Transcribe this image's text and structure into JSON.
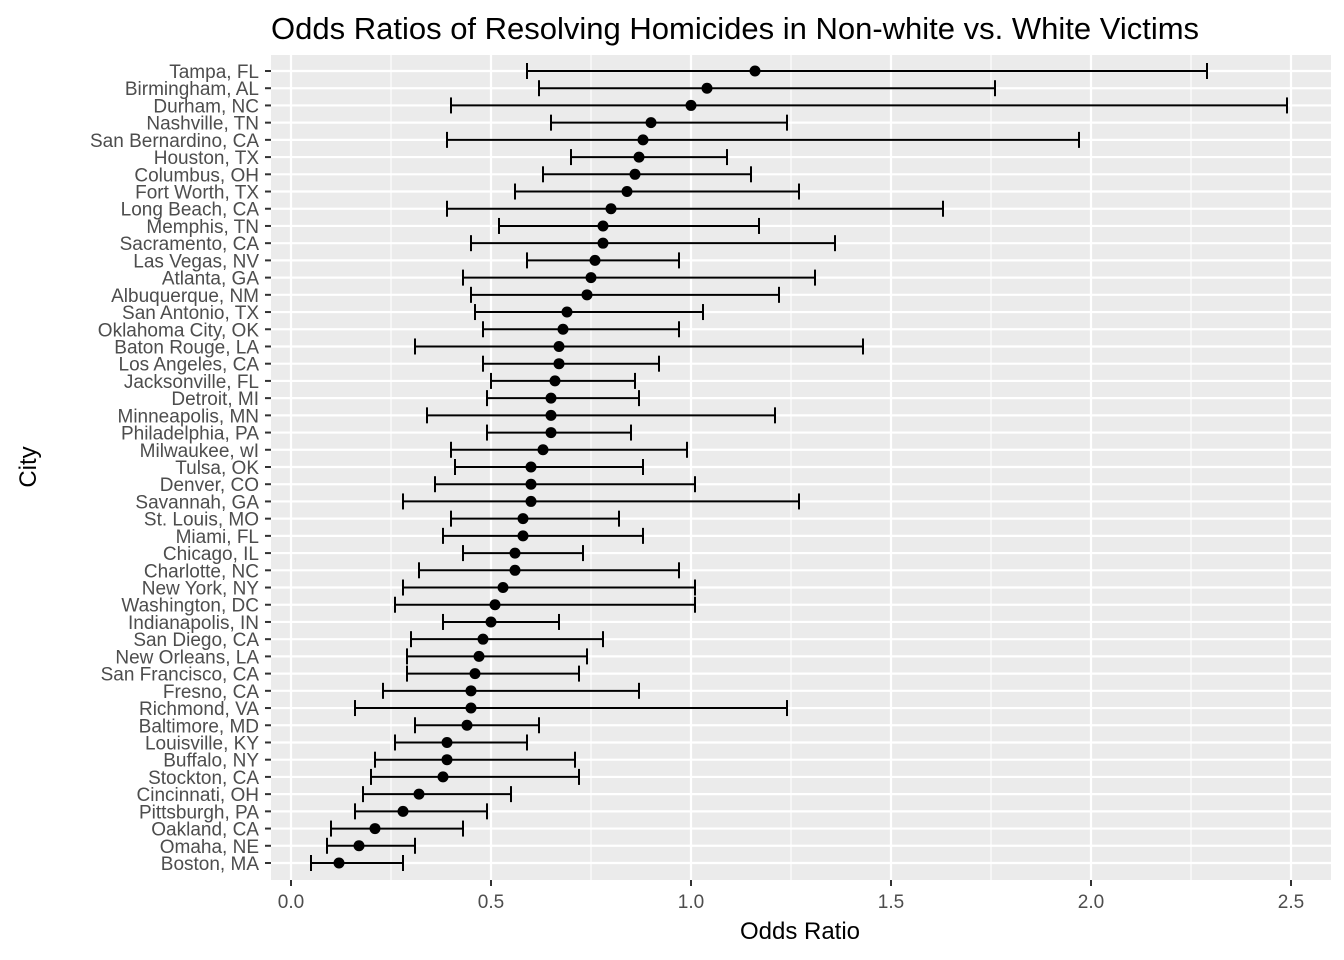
{
  "chart_data": {
    "type": "scatter",
    "subtype": "point-with-errorbars",
    "title": "Odds Ratios of Resolving Homicides in Non-white vs. White Victims",
    "xlabel": "Odds Ratio",
    "ylabel": "City",
    "xlim": [
      -0.05,
      2.6
    ],
    "x_ticks": [
      0.0,
      0.5,
      1.0,
      1.5,
      2.0,
      2.5
    ],
    "x_tick_labels": [
      "0.0",
      "0.5",
      "1.0",
      "1.5",
      "2.0",
      "2.5"
    ],
    "grid": true,
    "colors": {
      "panel": "#EBEBEB",
      "grid_major": "#FFFFFF",
      "point": "#000000",
      "tick_text": "#4D4D4D"
    },
    "cities": [
      "Tampa, FL",
      "Birmingham, AL",
      "Durham, NC",
      "Nashville, TN",
      "San Bernardino, CA",
      "Houston, TX",
      "Columbus, OH",
      "Fort Worth, TX",
      "Long Beach, CA",
      "Memphis, TN",
      "Sacramento, CA",
      "Las Vegas, NV",
      "Atlanta, GA",
      "Albuquerque, NM",
      "San Antonio, TX",
      "Oklahoma City, OK",
      "Baton Rouge, LA",
      "Los Angeles, CA",
      "Jacksonville, FL",
      "Detroit, MI",
      "Minneapolis, MN",
      "Philadelphia, PA",
      "Milwaukee, wI",
      "Tulsa, OK",
      "Denver, CO",
      "Savannah, GA",
      "St. Louis, MO",
      "Miami, FL",
      "Chicago, IL",
      "Charlotte, NC",
      "New York, NY",
      "Washington, DC",
      "Indianapolis, IN",
      "San Diego, CA",
      "New Orleans, LA",
      "San Francisco, CA",
      "Fresno, CA",
      "Richmond, VA",
      "Baltimore, MD",
      "Louisville, KY",
      "Buffalo, NY",
      "Stockton, CA",
      "Cincinnati, OH",
      "Pittsburgh, PA",
      "Oakland, CA",
      "Omaha, NE",
      "Boston, MA"
    ],
    "odds_ratio": [
      1.16,
      1.04,
      1.0,
      0.9,
      0.88,
      0.87,
      0.86,
      0.84,
      0.8,
      0.78,
      0.78,
      0.76,
      0.75,
      0.74,
      0.69,
      0.68,
      0.67,
      0.67,
      0.66,
      0.65,
      0.65,
      0.65,
      0.63,
      0.6,
      0.6,
      0.6,
      0.58,
      0.58,
      0.56,
      0.56,
      0.53,
      0.51,
      0.5,
      0.48,
      0.47,
      0.46,
      0.45,
      0.45,
      0.44,
      0.39,
      0.39,
      0.38,
      0.32,
      0.28,
      0.21,
      0.17,
      0.12
    ],
    "ci_low": [
      0.59,
      0.62,
      0.4,
      0.65,
      0.39,
      0.7,
      0.63,
      0.56,
      0.39,
      0.52,
      0.45,
      0.59,
      0.43,
      0.45,
      0.46,
      0.48,
      0.31,
      0.48,
      0.5,
      0.49,
      0.34,
      0.49,
      0.4,
      0.41,
      0.36,
      0.28,
      0.4,
      0.38,
      0.43,
      0.32,
      0.28,
      0.26,
      0.38,
      0.3,
      0.29,
      0.29,
      0.23,
      0.16,
      0.31,
      0.26,
      0.21,
      0.2,
      0.18,
      0.16,
      0.1,
      0.09,
      0.05
    ],
    "ci_high": [
      2.29,
      1.76,
      2.49,
      1.24,
      1.97,
      1.09,
      1.15,
      1.27,
      1.63,
      1.17,
      1.36,
      0.97,
      1.31,
      1.22,
      1.03,
      0.97,
      1.43,
      0.92,
      0.86,
      0.87,
      1.21,
      0.85,
      0.99,
      0.88,
      1.01,
      1.27,
      0.82,
      0.88,
      0.73,
      0.97,
      1.01,
      1.01,
      0.67,
      0.78,
      0.74,
      0.72,
      0.87,
      1.24,
      0.62,
      0.59,
      0.71,
      0.72,
      0.55,
      0.49,
      0.43,
      0.31,
      0.28
    ]
  }
}
